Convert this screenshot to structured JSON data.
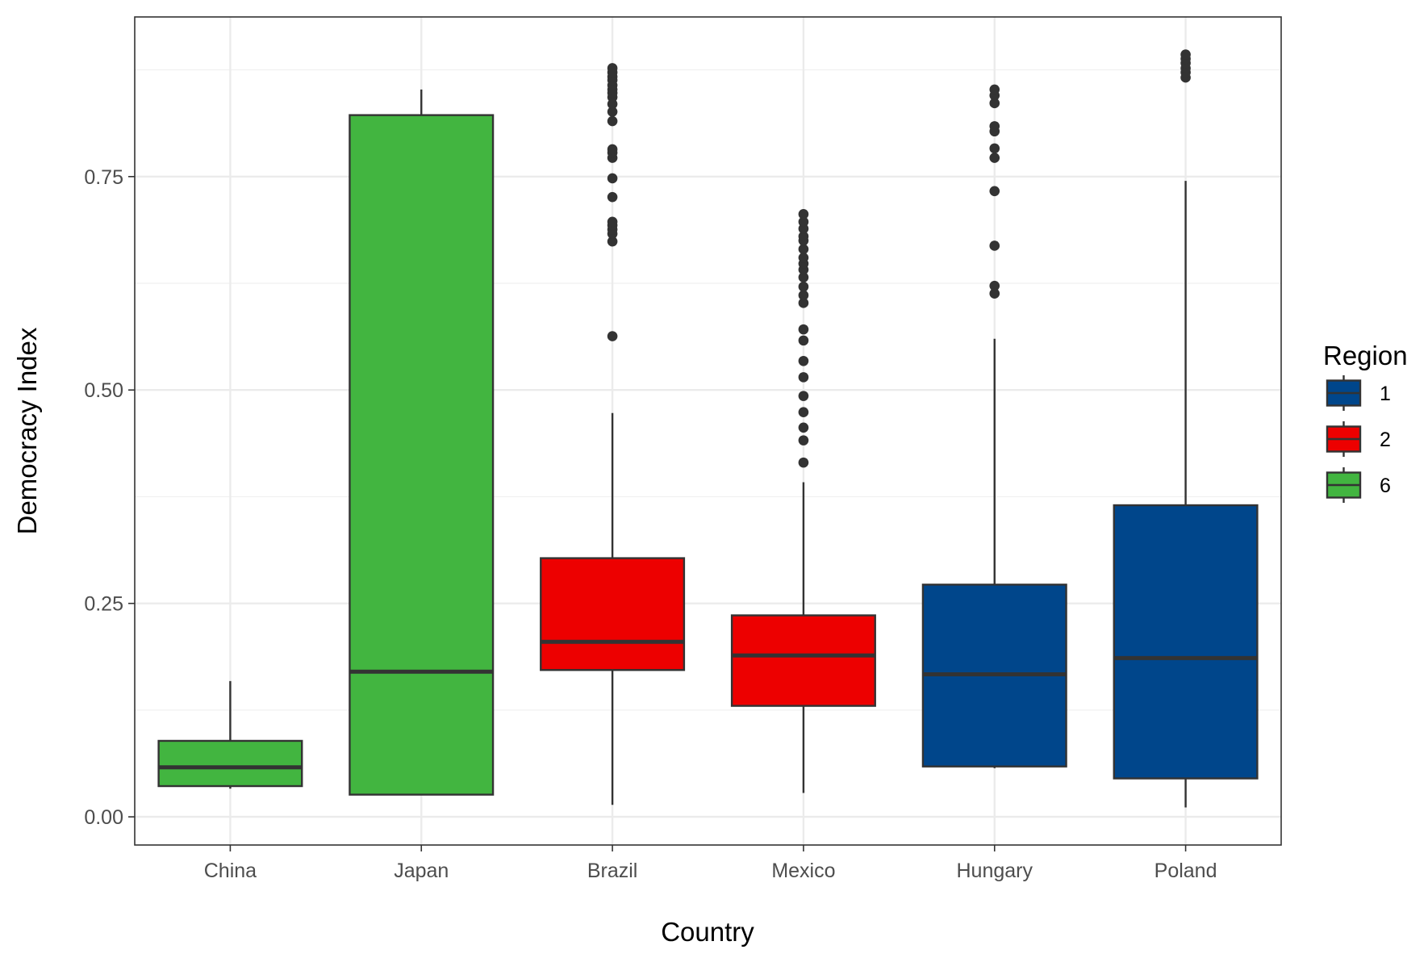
{
  "chart_data": {
    "type": "boxplot",
    "xlabel": "Country",
    "ylabel": "Democracy Index",
    "ylim": [
      -0.033,
      0.937
    ],
    "yticks": [
      "0.00",
      "0.25",
      "0.50",
      "0.75"
    ],
    "grid": true,
    "legend": {
      "title": "Region",
      "position": "right",
      "items": [
        {
          "label": "1",
          "color": "#00468b"
        },
        {
          "label": "2",
          "color": "#ed0000"
        },
        {
          "label": "6",
          "color": "#42b540"
        }
      ]
    },
    "categories": [
      "China",
      "Japan",
      "Brazil",
      "Mexico",
      "Hungary",
      "Poland"
    ],
    "boxes": [
      {
        "category": "China",
        "region": "6",
        "whisker_low": 0.033,
        "q1": 0.036,
        "median": 0.058,
        "q3": 0.089,
        "whisker_high": 0.159,
        "outliers": []
      },
      {
        "category": "Japan",
        "region": "6",
        "whisker_low": 0.026,
        "q1": 0.026,
        "median": 0.17,
        "q3": 0.822,
        "whisker_high": 0.852,
        "outliers": []
      },
      {
        "category": "Brazil",
        "region": "2",
        "whisker_low": 0.014,
        "q1": 0.172,
        "median": 0.205,
        "q3": 0.303,
        "whisker_high": 0.473,
        "outliers": [
          0.563,
          0.674,
          0.683,
          0.688,
          0.693,
          0.697,
          0.726,
          0.748,
          0.772,
          0.778,
          0.782,
          0.815,
          0.826,
          0.835,
          0.843,
          0.848,
          0.852,
          0.857,
          0.863,
          0.867,
          0.872,
          0.877
        ]
      },
      {
        "category": "Mexico",
        "region": "2",
        "whisker_low": 0.028,
        "q1": 0.13,
        "median": 0.189,
        "q3": 0.236,
        "whisker_high": 0.392,
        "outliers": [
          0.415,
          0.441,
          0.456,
          0.474,
          0.493,
          0.515,
          0.534,
          0.558,
          0.571,
          0.602,
          0.611,
          0.621,
          0.632,
          0.641,
          0.648,
          0.655,
          0.665,
          0.675,
          0.68,
          0.689,
          0.697,
          0.706
        ]
      },
      {
        "category": "Hungary",
        "region": "1",
        "whisker_low": 0.057,
        "q1": 0.059,
        "median": 0.167,
        "q3": 0.272,
        "whisker_high": 0.56,
        "outliers": [
          0.613,
          0.622,
          0.669,
          0.733,
          0.772,
          0.783,
          0.803,
          0.809,
          0.836,
          0.845,
          0.852
        ]
      },
      {
        "category": "Poland",
        "region": "1",
        "whisker_low": 0.011,
        "q1": 0.045,
        "median": 0.186,
        "q3": 0.365,
        "whisker_high": 0.745,
        "outliers": [
          0.866,
          0.872,
          0.877,
          0.883,
          0.888,
          0.893
        ]
      }
    ]
  }
}
